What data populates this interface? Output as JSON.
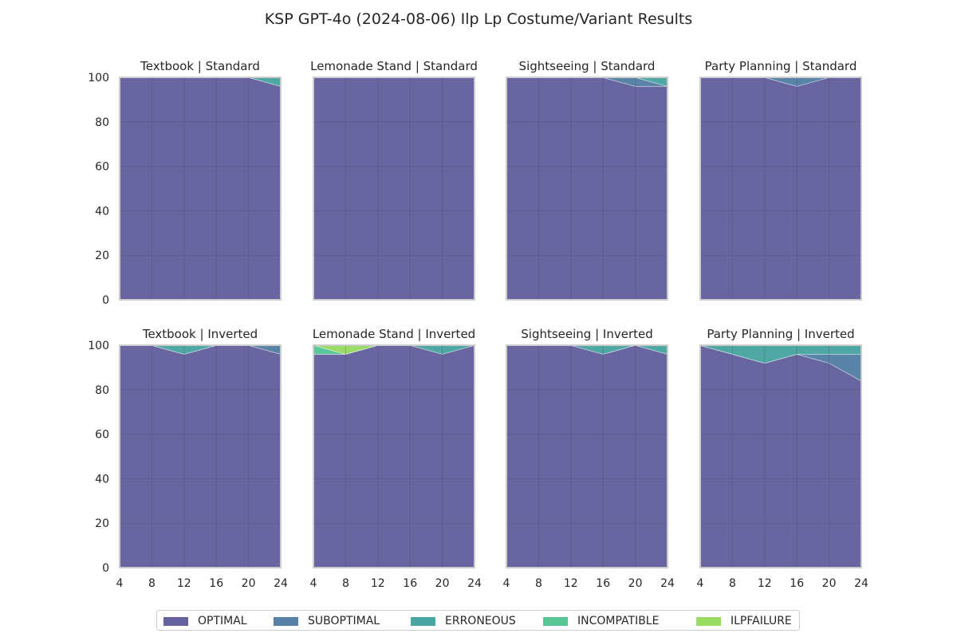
{
  "chart_data": {
    "type": "area",
    "title": "KSP GPT-4o (2024-08-06) Ilp Lp Costume/Variant Results",
    "x": [
      4,
      8,
      12,
      16,
      20,
      24
    ],
    "x_ticks": [
      "4",
      "8",
      "12",
      "16",
      "20",
      "24"
    ],
    "y_ticks": [
      "0",
      "20",
      "40",
      "60",
      "80",
      "100"
    ],
    "ylim": [
      0,
      100
    ],
    "xlim": [
      4,
      24
    ],
    "stacked": true,
    "grid": true,
    "legend_position": "bottom",
    "legend": [
      {
        "name": "OPTIMAL",
        "color": "#3e3a86"
      },
      {
        "name": "SUBOPTIMAL",
        "color": "#2c628e"
      },
      {
        "name": "ERRONEOUS",
        "color": "#1e8f8b"
      },
      {
        "name": "INCOMPATIBLE",
        "color": "#2eb77b"
      },
      {
        "name": "ILPFAILURE",
        "color": "#7fd23c"
      }
    ],
    "panels": [
      {
        "title": "Textbook | Standard",
        "series": [
          {
            "name": "OPTIMAL",
            "values": [
              100,
              100,
              100,
              100,
              100,
              96
            ]
          },
          {
            "name": "SUBOPTIMAL",
            "values": [
              0,
              0,
              0,
              0,
              0,
              0
            ]
          },
          {
            "name": "ERRONEOUS",
            "values": [
              0,
              0,
              0,
              0,
              0,
              4
            ]
          },
          {
            "name": "INCOMPATIBLE",
            "values": [
              0,
              0,
              0,
              0,
              0,
              0
            ]
          },
          {
            "name": "ILPFAILURE",
            "values": [
              0,
              0,
              0,
              0,
              0,
              0
            ]
          }
        ]
      },
      {
        "title": "Lemonade Stand | Standard",
        "series": [
          {
            "name": "OPTIMAL",
            "values": [
              100,
              100,
              100,
              100,
              100,
              100
            ]
          },
          {
            "name": "SUBOPTIMAL",
            "values": [
              0,
              0,
              0,
              0,
              0,
              0
            ]
          },
          {
            "name": "ERRONEOUS",
            "values": [
              0,
              0,
              0,
              0,
              0,
              0
            ]
          },
          {
            "name": "INCOMPATIBLE",
            "values": [
              0,
              0,
              0,
              0,
              0,
              0
            ]
          },
          {
            "name": "ILPFAILURE",
            "values": [
              0,
              0,
              0,
              0,
              0,
              0
            ]
          }
        ]
      },
      {
        "title": "Sightseeing | Standard",
        "series": [
          {
            "name": "OPTIMAL",
            "values": [
              100,
              100,
              100,
              100,
              96,
              96
            ]
          },
          {
            "name": "SUBOPTIMAL",
            "values": [
              0,
              0,
              0,
              0,
              4,
              0
            ]
          },
          {
            "name": "ERRONEOUS",
            "values": [
              0,
              0,
              0,
              0,
              0,
              4
            ]
          },
          {
            "name": "INCOMPATIBLE",
            "values": [
              0,
              0,
              0,
              0,
              0,
              0
            ]
          },
          {
            "name": "ILPFAILURE",
            "values": [
              0,
              0,
              0,
              0,
              0,
              0
            ]
          }
        ]
      },
      {
        "title": "Party Planning | Standard",
        "series": [
          {
            "name": "OPTIMAL",
            "values": [
              100,
              100,
              100,
              96,
              100,
              100
            ]
          },
          {
            "name": "SUBOPTIMAL",
            "values": [
              0,
              0,
              0,
              4,
              0,
              0
            ]
          },
          {
            "name": "ERRONEOUS",
            "values": [
              0,
              0,
              0,
              0,
              0,
              0
            ]
          },
          {
            "name": "INCOMPATIBLE",
            "values": [
              0,
              0,
              0,
              0,
              0,
              0
            ]
          },
          {
            "name": "ILPFAILURE",
            "values": [
              0,
              0,
              0,
              0,
              0,
              0
            ]
          }
        ]
      },
      {
        "title": "Textbook | Inverted",
        "series": [
          {
            "name": "OPTIMAL",
            "values": [
              100,
              100,
              96,
              100,
              100,
              96
            ]
          },
          {
            "name": "SUBOPTIMAL",
            "values": [
              0,
              0,
              0,
              0,
              0,
              4
            ]
          },
          {
            "name": "ERRONEOUS",
            "values": [
              0,
              0,
              4,
              0,
              0,
              0
            ]
          },
          {
            "name": "INCOMPATIBLE",
            "values": [
              0,
              0,
              0,
              0,
              0,
              0
            ]
          },
          {
            "name": "ILPFAILURE",
            "values": [
              0,
              0,
              0,
              0,
              0,
              0
            ]
          }
        ]
      },
      {
        "title": "Lemonade Stand | Inverted",
        "series": [
          {
            "name": "OPTIMAL",
            "values": [
              96,
              96,
              100,
              100,
              96,
              100
            ]
          },
          {
            "name": "SUBOPTIMAL",
            "values": [
              0,
              0,
              0,
              0,
              0,
              0
            ]
          },
          {
            "name": "ERRONEOUS",
            "values": [
              0,
              0,
              0,
              0,
              4,
              0
            ]
          },
          {
            "name": "INCOMPATIBLE",
            "values": [
              4,
              0,
              0,
              0,
              0,
              0
            ]
          },
          {
            "name": "ILPFAILURE",
            "values": [
              0,
              4,
              0,
              0,
              0,
              0
            ]
          }
        ]
      },
      {
        "title": "Sightseeing | Inverted",
        "series": [
          {
            "name": "OPTIMAL",
            "values": [
              100,
              100,
              100,
              96,
              100,
              96
            ]
          },
          {
            "name": "SUBOPTIMAL",
            "values": [
              0,
              0,
              0,
              0,
              0,
              0
            ]
          },
          {
            "name": "ERRONEOUS",
            "values": [
              0,
              0,
              0,
              4,
              0,
              4
            ]
          },
          {
            "name": "INCOMPATIBLE",
            "values": [
              0,
              0,
              0,
              0,
              0,
              0
            ]
          },
          {
            "name": "ILPFAILURE",
            "values": [
              0,
              0,
              0,
              0,
              0,
              0
            ]
          }
        ]
      },
      {
        "title": "Party Planning | Inverted",
        "series": [
          {
            "name": "OPTIMAL",
            "values": [
              100,
              96,
              92,
              96,
              92,
              84
            ]
          },
          {
            "name": "SUBOPTIMAL",
            "values": [
              0,
              0,
              0,
              0,
              4,
              12
            ]
          },
          {
            "name": "ERRONEOUS",
            "values": [
              0,
              4,
              8,
              4,
              4,
              4
            ]
          },
          {
            "name": "INCOMPATIBLE",
            "values": [
              0,
              0,
              0,
              0,
              0,
              0
            ]
          },
          {
            "name": "ILPFAILURE",
            "values": [
              0,
              0,
              0,
              0,
              0,
              0
            ]
          }
        ]
      }
    ]
  }
}
